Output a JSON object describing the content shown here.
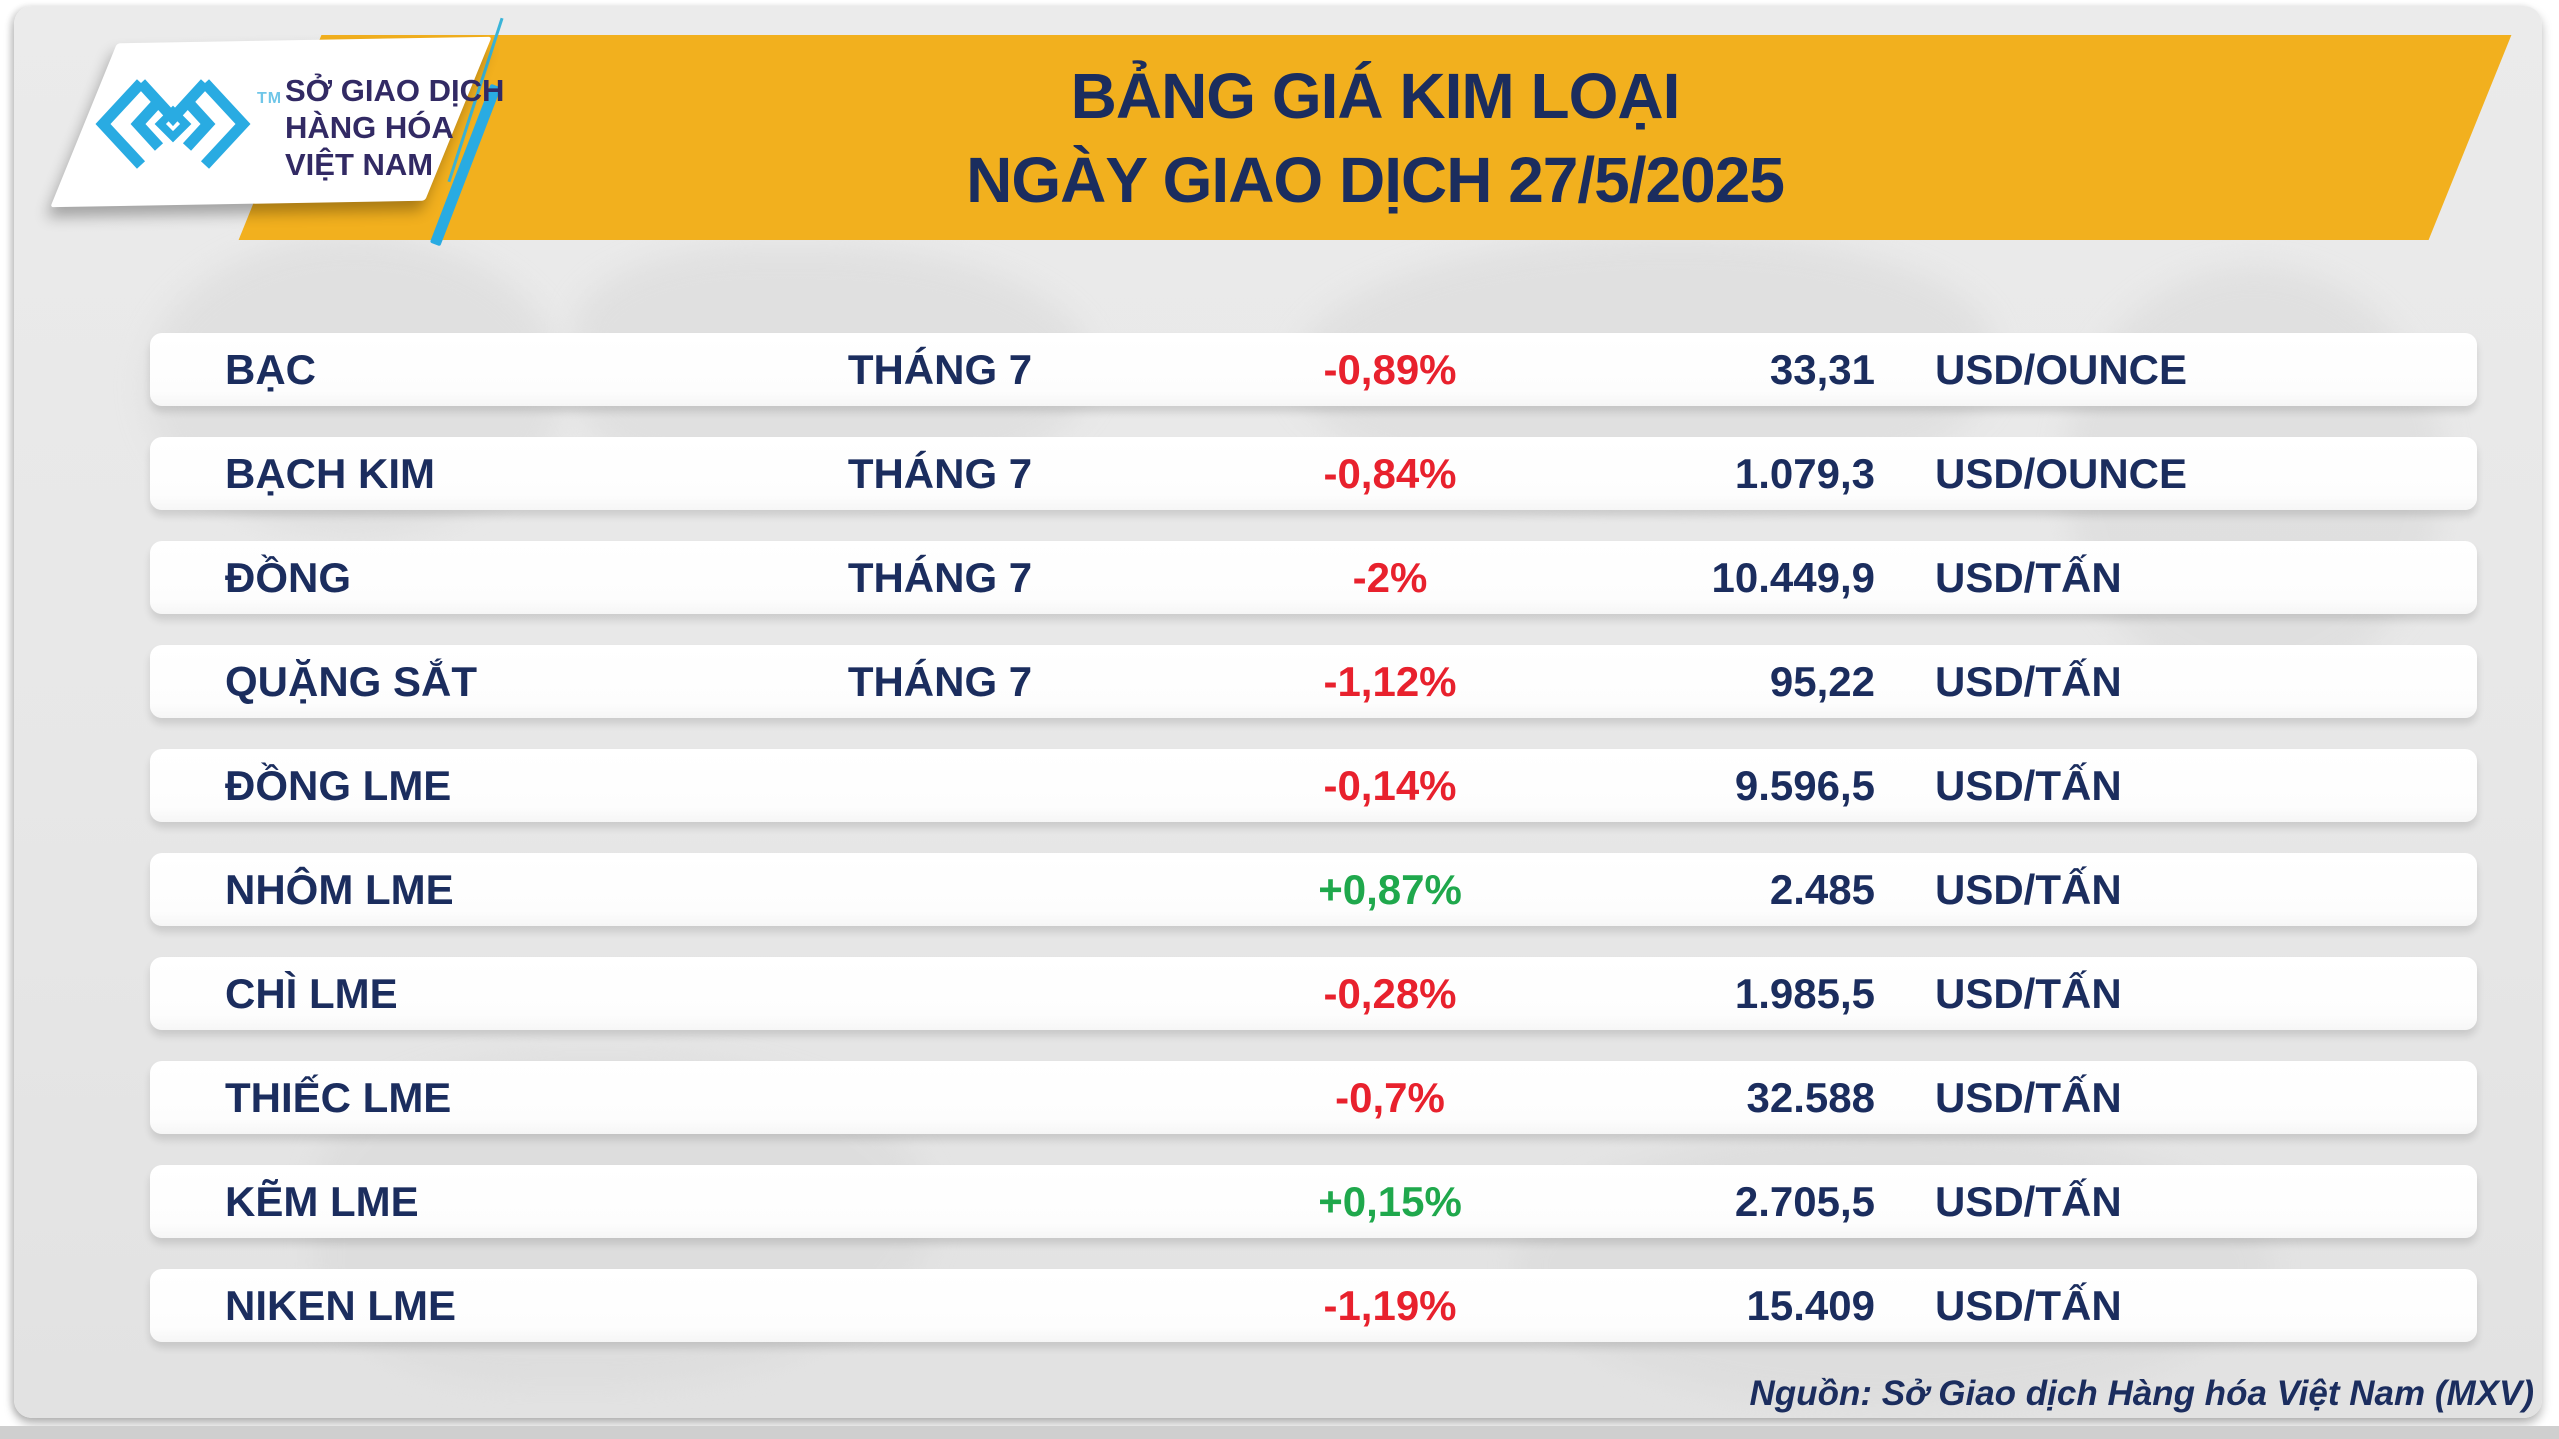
{
  "header": {
    "title_line1": "BẢNG GIÁ KIM LOẠI",
    "title_line2": "NGÀY GIAO DỊCH 27/5/2025",
    "logo": {
      "icon": "mxv-chevrons-icon",
      "trademark": "TM",
      "org_line1": "SỞ GIAO DỊCH",
      "org_line2": "HÀNG HÓA",
      "org_line3": "VIỆT NAM"
    }
  },
  "table": {
    "rows": [
      {
        "name": "BẠC",
        "month": "THÁNG 7",
        "change": "-0,89%",
        "price": "33,31",
        "unit": "USD/OUNCE"
      },
      {
        "name": "BẠCH KIM",
        "month": "THÁNG 7",
        "change": "-0,84%",
        "price": "1.079,3",
        "unit": "USD/OUNCE"
      },
      {
        "name": "ĐỒNG",
        "month": "THÁNG 7",
        "change": "-2%",
        "price": "10.449,9",
        "unit": "USD/TẤN"
      },
      {
        "name": "QUẶNG SẮT",
        "month": "THÁNG 7",
        "change": "-1,12%",
        "price": "95,22",
        "unit": "USD/TẤN"
      },
      {
        "name": "ĐỒNG LME",
        "month": "",
        "change": "-0,14%",
        "price": "9.596,5",
        "unit": "USD/TẤN"
      },
      {
        "name": "NHÔM LME",
        "month": "",
        "change": "+0,87%",
        "price": "2.485",
        "unit": "USD/TẤN"
      },
      {
        "name": "CHÌ LME",
        "month": "",
        "change": "-0,28%",
        "price": "1.985,5",
        "unit": "USD/TẤN"
      },
      {
        "name": "THIẾC LME",
        "month": "",
        "change": "-0,7%",
        "price": "32.588",
        "unit": "USD/TẤN"
      },
      {
        "name": "KẼM LME",
        "month": "",
        "change": "+0,15%",
        "price": "2.705,5",
        "unit": "USD/TẤN"
      },
      {
        "name": "NIKEN LME",
        "month": "",
        "change": "-1,19%",
        "price": "15.409",
        "unit": "USD/TẤN"
      }
    ]
  },
  "footer": {
    "source": "Nguồn: Sở Giao dịch Hàng hóa Việt Nam (MXV)"
  },
  "colors": {
    "accent_yellow": "#F2B01E",
    "navy": "#1B2D5E",
    "red": "#E8212D",
    "green": "#1FA84C",
    "logo_blue": "#29ABE2",
    "card_gray": "#E7E7E7"
  },
  "chart_data": {
    "type": "table",
    "title": "BẢNG GIÁ KIM LOẠI",
    "subtitle": "NGÀY GIAO DỊCH 27/5/2025",
    "columns": [
      "commodity",
      "contract_month",
      "change_pct",
      "price",
      "unit"
    ],
    "rows": [
      [
        "BẠC",
        "THÁNG 7",
        "-0,89%",
        "33,31",
        "USD/OUNCE"
      ],
      [
        "BẠCH KIM",
        "THÁNG 7",
        "-0,84%",
        "1.079,3",
        "USD/OUNCE"
      ],
      [
        "ĐỒNG",
        "THÁNG 7",
        "-2%",
        "10.449,9",
        "USD/TẤN"
      ],
      [
        "QUẶNG SẮT",
        "THÁNG 7",
        "-1,12%",
        "95,22",
        "USD/TẤN"
      ],
      [
        "ĐỒNG LME",
        "",
        "-0,14%",
        "9.596,5",
        "USD/TẤN"
      ],
      [
        "NHÔM LME",
        "",
        "+0,87%",
        "2.485",
        "USD/TẤN"
      ],
      [
        "CHÌ LME",
        "",
        "-0,28%",
        "1.985,5",
        "USD/TẤN"
      ],
      [
        "THIẾC LME",
        "",
        "-0,7%",
        "32.588",
        "USD/TẤN"
      ],
      [
        "KẼM LME",
        "",
        "+0,15%",
        "2.705,5",
        "USD/TẤN"
      ],
      [
        "NIKEN LME",
        "",
        "-1,19%",
        "15.409",
        "USD/TẤN"
      ]
    ],
    "source": "Nguồn: Sở Giao dịch Hàng hóa Việt Nam (MXV)"
  }
}
